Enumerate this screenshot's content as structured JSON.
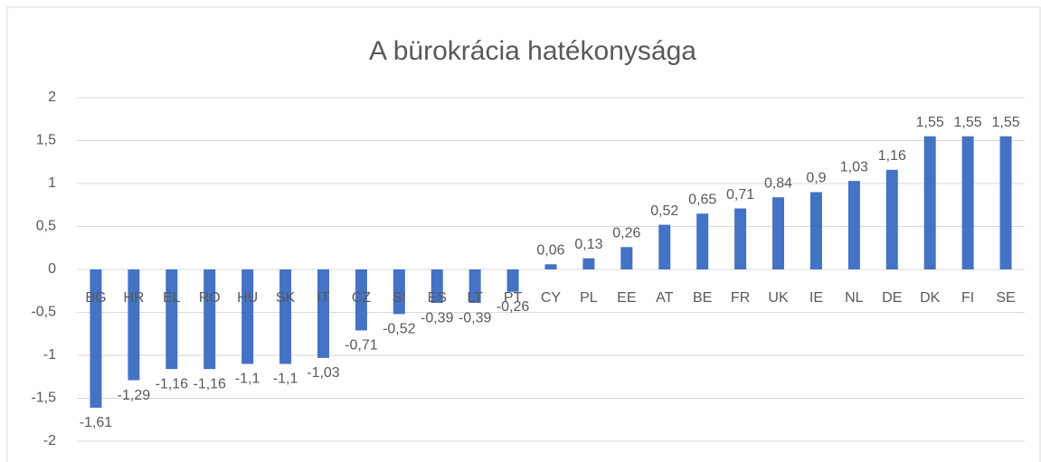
{
  "chart_data": {
    "type": "bar",
    "title": "A bürokrácia hatékonysága",
    "categories": [
      "BG",
      "HR",
      "EL",
      "RO",
      "HU",
      "SK",
      "IT",
      "CZ",
      "SI",
      "ES",
      "LT",
      "PT",
      "CY",
      "PL",
      "EE",
      "AT",
      "BE",
      "FR",
      "UK",
      "IE",
      "NL",
      "DE",
      "DK",
      "FI",
      "SE"
    ],
    "values": [
      -1.61,
      -1.29,
      -1.16,
      -1.16,
      -1.1,
      -1.1,
      -1.03,
      -0.71,
      -0.52,
      -0.39,
      -0.39,
      -0.26,
      0.06,
      0.13,
      0.26,
      0.52,
      0.65,
      0.71,
      0.84,
      0.9,
      1.03,
      1.16,
      1.55,
      1.55,
      1.55
    ],
    "value_labels": [
      "-1,61",
      "-1,29",
      "-1,16",
      "-1,16",
      "-1,1",
      "-1,1",
      "-1,03",
      "-0,71",
      "-0,52",
      "-0,39",
      "-0,39",
      "-0,26",
      "0,06",
      "0,13",
      "0,26",
      "0,52",
      "0,65",
      "0,71",
      "0,84",
      "0,9",
      "1,03",
      "1,16",
      "1,55",
      "1,55",
      "1,55"
    ],
    "color": "#4472c4",
    "ylim": [
      -2,
      2
    ],
    "yticks": [
      -2,
      {
        "value": -1.5,
        "label": "-1,5"
      },
      -1,
      {
        "value": -0.5,
        "label": "-0,5"
      },
      0,
      {
        "value": 0.5,
        "label": "0,5"
      },
      1,
      {
        "value": 1.5,
        "label": "1,5"
      },
      2
    ],
    "grid": true
  }
}
